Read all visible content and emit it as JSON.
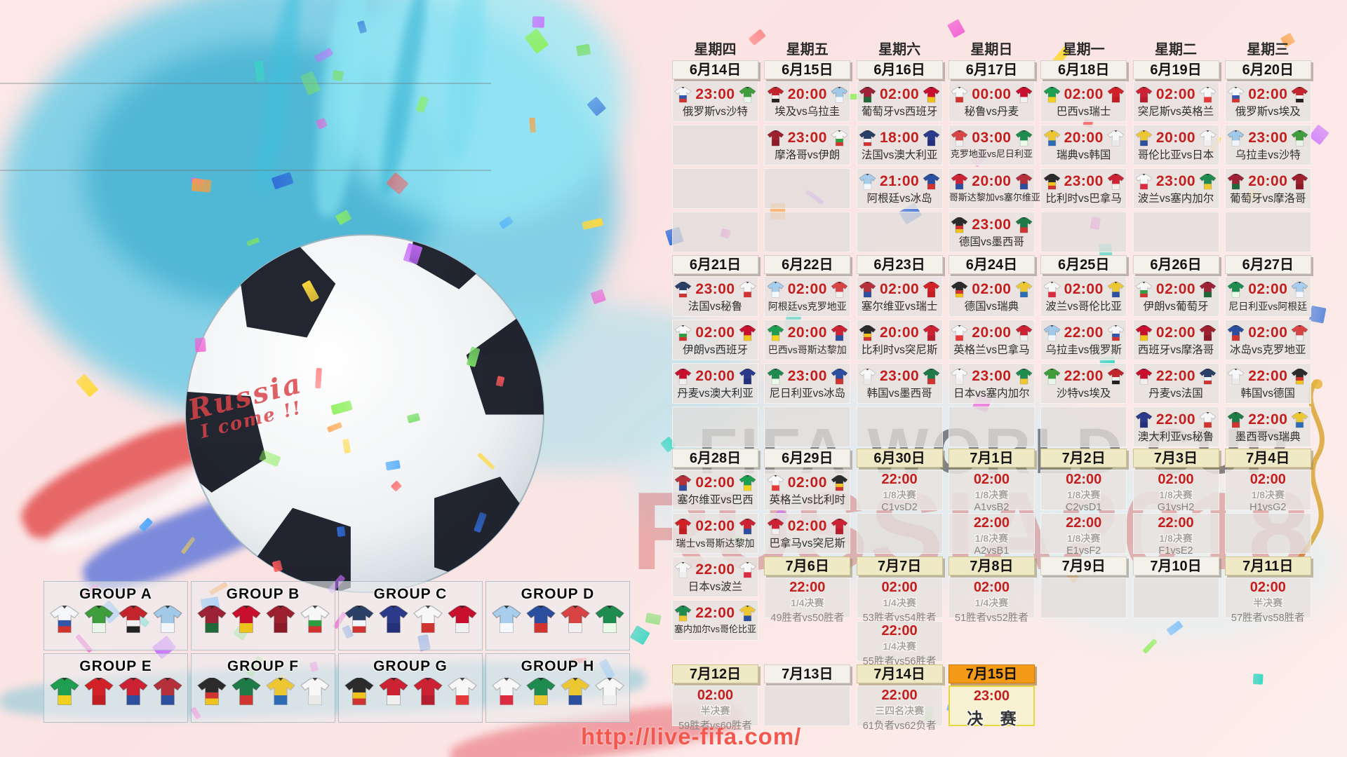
{
  "weekdays": [
    "星期四",
    "星期五",
    "星期六",
    "星期日",
    "星期一",
    "星期二",
    "星期三"
  ],
  "blocks": [
    {
      "dates": [
        {
          "d": "6月14日",
          "s": "w"
        },
        {
          "d": "6月15日",
          "s": "w"
        },
        {
          "d": "6月16日",
          "s": "w"
        },
        {
          "d": "6月17日",
          "s": "w"
        },
        {
          "d": "6月18日",
          "s": "w"
        },
        {
          "d": "6月19日",
          "s": "w"
        },
        {
          "d": "6月20日",
          "s": "w"
        }
      ],
      "rows": [
        [
          {
            "t": "23:00",
            "a": "俄罗斯",
            "b": "沙特"
          },
          {
            "t": "20:00",
            "a": "埃及",
            "b": "乌拉圭"
          },
          {
            "t": "02:00",
            "a": "葡萄牙",
            "b": "西班牙"
          },
          {
            "t": "00:00",
            "a": "秘鲁",
            "b": "丹麦"
          },
          {
            "t": "02:00",
            "a": "巴西",
            "b": "瑞士"
          },
          {
            "t": "02:00",
            "a": "突尼斯",
            "b": "英格兰"
          },
          {
            "t": "02:00",
            "a": "俄罗斯",
            "b": "埃及"
          }
        ],
        [
          "E",
          {
            "t": "23:00",
            "a": "摩洛哥",
            "b": "伊朗"
          },
          {
            "t": "18:00",
            "a": "法国",
            "b": "澳大利亚"
          },
          {
            "t": "03:00",
            "a": "克罗地亚",
            "b": "尼日利亚"
          },
          {
            "t": "20:00",
            "a": "瑞典",
            "b": "韩国"
          },
          {
            "t": "20:00",
            "a": "哥伦比亚",
            "b": "日本"
          },
          {
            "t": "23:00",
            "a": "乌拉圭",
            "b": "沙特"
          }
        ],
        [
          "E",
          "E",
          {
            "t": "21:00",
            "a": "阿根廷",
            "b": "冰岛"
          },
          {
            "t": "20:00",
            "a": "哥斯达黎加",
            "b": "塞尔维亚"
          },
          {
            "t": "23:00",
            "a": "比利时",
            "b": "巴拿马"
          },
          {
            "t": "23:00",
            "a": "波兰",
            "b": "塞内加尔"
          },
          {
            "t": "20:00",
            "a": "葡萄牙",
            "b": "摩洛哥"
          }
        ],
        [
          "E",
          "E",
          "E",
          {
            "t": "23:00",
            "a": "德国",
            "b": "墨西哥"
          },
          "E",
          "E",
          "E"
        ]
      ]
    },
    {
      "dates": [
        {
          "d": "6月21日",
          "s": "w"
        },
        {
          "d": "6月22日",
          "s": "w"
        },
        {
          "d": "6月23日",
          "s": "w"
        },
        {
          "d": "6月24日",
          "s": "w"
        },
        {
          "d": "6月25日",
          "s": "w"
        },
        {
          "d": "6月26日",
          "s": "w"
        },
        {
          "d": "6月27日",
          "s": "w"
        }
      ],
      "rows": [
        [
          {
            "t": "23:00",
            "a": "法国",
            "b": "秘鲁"
          },
          {
            "t": "02:00",
            "a": "阿根廷",
            "b": "克罗地亚"
          },
          {
            "t": "02:00",
            "a": "塞尔维亚",
            "b": "瑞士"
          },
          {
            "t": "02:00",
            "a": "德国",
            "b": "瑞典"
          },
          {
            "t": "02:00",
            "a": "波兰",
            "b": "哥伦比亚"
          },
          {
            "t": "02:00",
            "a": "伊朗",
            "b": "葡萄牙"
          },
          {
            "t": "02:00",
            "a": "尼日利亚",
            "b": "阿根廷"
          }
        ],
        [
          {
            "t": "02:00",
            "a": "伊朗",
            "b": "西班牙"
          },
          {
            "t": "20:00",
            "a": "巴西",
            "b": "哥斯达黎加"
          },
          {
            "t": "20:00",
            "a": "比利时",
            "b": "突尼斯"
          },
          {
            "t": "20:00",
            "a": "英格兰",
            "b": "巴拿马"
          },
          {
            "t": "22:00",
            "a": "乌拉圭",
            "b": "俄罗斯"
          },
          {
            "t": "02:00",
            "a": "西班牙",
            "b": "摩洛哥"
          },
          {
            "t": "02:00",
            "a": "冰岛",
            "b": "克罗地亚"
          }
        ],
        [
          {
            "t": "20:00",
            "a": "丹麦",
            "b": "澳大利亚"
          },
          {
            "t": "23:00",
            "a": "尼日利亚",
            "b": "冰岛"
          },
          {
            "t": "23:00",
            "a": "韩国",
            "b": "墨西哥"
          },
          {
            "t": "23:00",
            "a": "日本",
            "b": "塞内加尔"
          },
          {
            "t": "22:00",
            "a": "沙特",
            "b": "埃及"
          },
          {
            "t": "22:00",
            "a": "丹麦",
            "b": "法国"
          },
          {
            "t": "22:00",
            "a": "韩国",
            "b": "德国"
          }
        ],
        [
          "E",
          "E",
          "E",
          "E",
          "E",
          {
            "t": "22:00",
            "a": "澳大利亚",
            "b": "秘鲁"
          },
          {
            "t": "22:00",
            "a": "墨西哥",
            "b": "瑞典"
          }
        ]
      ]
    },
    {
      "dates": [
        {
          "d": "6月28日",
          "s": "w"
        },
        {
          "d": "6月29日",
          "s": "w"
        },
        {
          "d": "6月30日",
          "s": "c"
        },
        {
          "d": "7月1日",
          "s": "c"
        },
        {
          "d": "7月2日",
          "s": "c"
        },
        {
          "d": "7月3日",
          "s": "c"
        },
        {
          "d": "7月4日",
          "s": "c"
        }
      ],
      "rows": [
        [
          {
            "t": "02:00",
            "a": "塞尔维亚",
            "b": "巴西"
          },
          {
            "t": "02:00",
            "a": "英格兰",
            "b": "比利时"
          },
          {
            "t": "22:00",
            "s": "1/8决赛",
            "p": "C1vsD2"
          },
          {
            "t": "02:00",
            "s": "1/8决赛",
            "p": "A1vsB2"
          },
          {
            "t": "02:00",
            "s": "1/8决赛",
            "p": "C2vsD1"
          },
          {
            "t": "02:00",
            "s": "1/8决赛",
            "p": "G1vsH2"
          },
          {
            "t": "02:00",
            "s": "1/8决赛",
            "p": "H1vsG2"
          }
        ],
        [
          {
            "t": "02:00",
            "a": "瑞士",
            "b": "哥斯达黎加"
          },
          {
            "t": "02:00",
            "a": "巴拿马",
            "b": "突尼斯"
          },
          "E",
          {
            "t": "22:00",
            "s": "1/8决赛",
            "p": "A2vsB1"
          },
          {
            "t": "22:00",
            "s": "1/8决赛",
            "p": "E1vsF2"
          },
          {
            "t": "22:00",
            "s": "1/8决赛",
            "p": "F1vsE2"
          },
          "E"
        ],
        [
          {
            "t": "22:00",
            "a": "日本",
            "b": "波兰"
          },
          null,
          null,
          null,
          null,
          null,
          null
        ],
        [
          {
            "t": "22:00",
            "a": "塞内加尔",
            "b": "哥伦比亚"
          },
          null,
          null,
          null,
          null,
          null,
          null
        ]
      ]
    },
    {
      "colStart": 1,
      "dates": [
        {
          "d": "7月6日",
          "s": "c"
        },
        {
          "d": "7月7日",
          "s": "c"
        },
        {
          "d": "7月8日",
          "s": "c"
        },
        {
          "d": "7月9日",
          "s": "w"
        },
        {
          "d": "7月10日",
          "s": "w"
        },
        {
          "d": "7月11日",
          "s": "c"
        }
      ],
      "rows": [
        [
          {
            "t": "22:00",
            "s": "1/4决赛",
            "p": "49胜者vs50胜者"
          },
          {
            "t": "02:00",
            "s": "1/4决赛",
            "p": "53胜者vs54胜者"
          },
          {
            "t": "02:00",
            "s": "1/4决赛",
            "p": "51胜者vs52胜者"
          },
          "E",
          "E",
          {
            "t": "02:00",
            "s": "半决赛",
            "p": "57胜者vs58胜者"
          }
        ],
        [
          null,
          {
            "t": "22:00",
            "s": "1/4决赛",
            "p": "55胜者vs56胜者"
          },
          null,
          null,
          null,
          null
        ]
      ]
    },
    {
      "dates": [
        {
          "d": "7月12日",
          "s": "c"
        },
        {
          "d": "7月13日",
          "s": "w"
        },
        {
          "d": "7月14日",
          "s": "c"
        },
        {
          "d": "7月15日",
          "s": "o"
        }
      ],
      "rows": [
        [
          {
            "t": "02:00",
            "s": "半决赛",
            "p": "59胜者vs60胜者"
          },
          "E",
          {
            "t": "22:00",
            "s": "三四名决赛",
            "p": "61负者vs62负者"
          },
          {
            "t": "23:00",
            "s": "决 赛",
            "f": true
          }
        ]
      ]
    }
  ],
  "groups": [
    {
      "name": "GROUP A",
      "teams": [
        "俄罗斯",
        "沙特",
        "埃及",
        "乌拉圭"
      ]
    },
    {
      "name": "GROUP B",
      "teams": [
        "葡萄牙",
        "西班牙",
        "摩洛哥",
        "伊朗"
      ]
    },
    {
      "name": "GROUP C",
      "teams": [
        "法国",
        "澳大利亚",
        "秘鲁",
        "丹麦"
      ]
    },
    {
      "name": "GROUP D",
      "teams": [
        "阿根廷",
        "冰岛",
        "克罗地亚",
        "尼日利亚"
      ]
    },
    {
      "name": "GROUP E",
      "teams": [
        "巴西",
        "瑞士",
        "哥斯达黎加",
        "塞尔维亚"
      ]
    },
    {
      "name": "GROUP F",
      "teams": [
        "德国",
        "墨西哥",
        "瑞典",
        "韩国"
      ]
    },
    {
      "name": "GROUP G",
      "teams": [
        "比利时",
        "巴拿马",
        "突尼斯",
        "英格兰"
      ]
    },
    {
      "name": "GROUP H",
      "teams": [
        "波兰",
        "塞内加尔",
        "哥伦比亚",
        "日本"
      ]
    }
  ],
  "team_colors": {
    "俄罗斯": [
      "#f4f6fa",
      "#3356a8",
      "#cf3430"
    ],
    "沙特": [
      "#3f9e3c",
      "#e9f5e9"
    ],
    "埃及": [
      "#c4242c",
      "#f0f0f0",
      "#222222"
    ],
    "乌拉圭": [
      "#a3c9e9",
      "#f2f6fa"
    ],
    "葡萄牙": [
      "#9d2235",
      "#20683a"
    ],
    "西班牙": [
      "#c8102e",
      "#eec31e"
    ],
    "摩洛哥": [
      "#9e1f2e",
      "#8a1b29"
    ],
    "伊朗": [
      "#f7f7f7",
      "#2f9e41",
      "#cf3430"
    ],
    "法国": [
      "#2a3f66",
      "#f2f6fa",
      "#cf3430"
    ],
    "澳大利亚": [
      "#2c3a8c",
      "#24307a"
    ],
    "秘鲁": [
      "#f7f7f7",
      "#cf3430"
    ],
    "丹麦": [
      "#c8102e",
      "#f0f0f0"
    ],
    "克罗地亚": [
      "#d84444",
      "#f0f0f0"
    ],
    "尼日利亚": [
      "#1e8c4e",
      "#eafbe9"
    ],
    "阿根廷": [
      "#a9cdec",
      "#f5f9fd"
    ],
    "冰岛": [
      "#2b4f9e",
      "#cf3430"
    ],
    "巴西": [
      "#1e9e50",
      "#f2d020"
    ],
    "瑞士": [
      "#d32227",
      "#c01e22"
    ],
    "哥斯达黎加": [
      "#cc2233",
      "#2b4f9e"
    ],
    "塞尔维亚": [
      "#b5303a",
      "#2b4f9e"
    ],
    "德国": [
      "#2b2b2b",
      "#cf3430",
      "#eec31e"
    ],
    "墨西哥": [
      "#1e7a46",
      "#cf3430"
    ],
    "瑞典": [
      "#edc731",
      "#2d6cb5"
    ],
    "韩国": [
      "#f7f7f7",
      "#e9e9e9"
    ],
    "比利时": [
      "#2b2b2b",
      "#eec31e",
      "#cf3430"
    ],
    "巴拿马": [
      "#cc2233",
      "#f0f0f0"
    ],
    "突尼斯": [
      "#cc2233",
      "#b51e2e"
    ],
    "英格兰": [
      "#f7f7f7",
      "#e33b3b"
    ],
    "波兰": [
      "#f7f7f7",
      "#db2b40"
    ],
    "塞内加尔": [
      "#1e8c4e",
      "#edc731"
    ],
    "哥伦比亚": [
      "#edc731",
      "#2b4f9e"
    ],
    "日本": [
      "#f7f7f7",
      "#eeeeee"
    ]
  },
  "watermark": {
    "line1": "FIFA WORLD CUP",
    "line2": "RUSSIA2018"
  },
  "handwriting": {
    "line1": "Russia",
    "line2": "I come !!"
  },
  "url": "http://live-fifa.com/",
  "colors": {
    "time_red": "#c41f1f",
    "url_red": "#f4574d",
    "final_orange": "#f49a16",
    "date_cream": "#efe9c6"
  }
}
